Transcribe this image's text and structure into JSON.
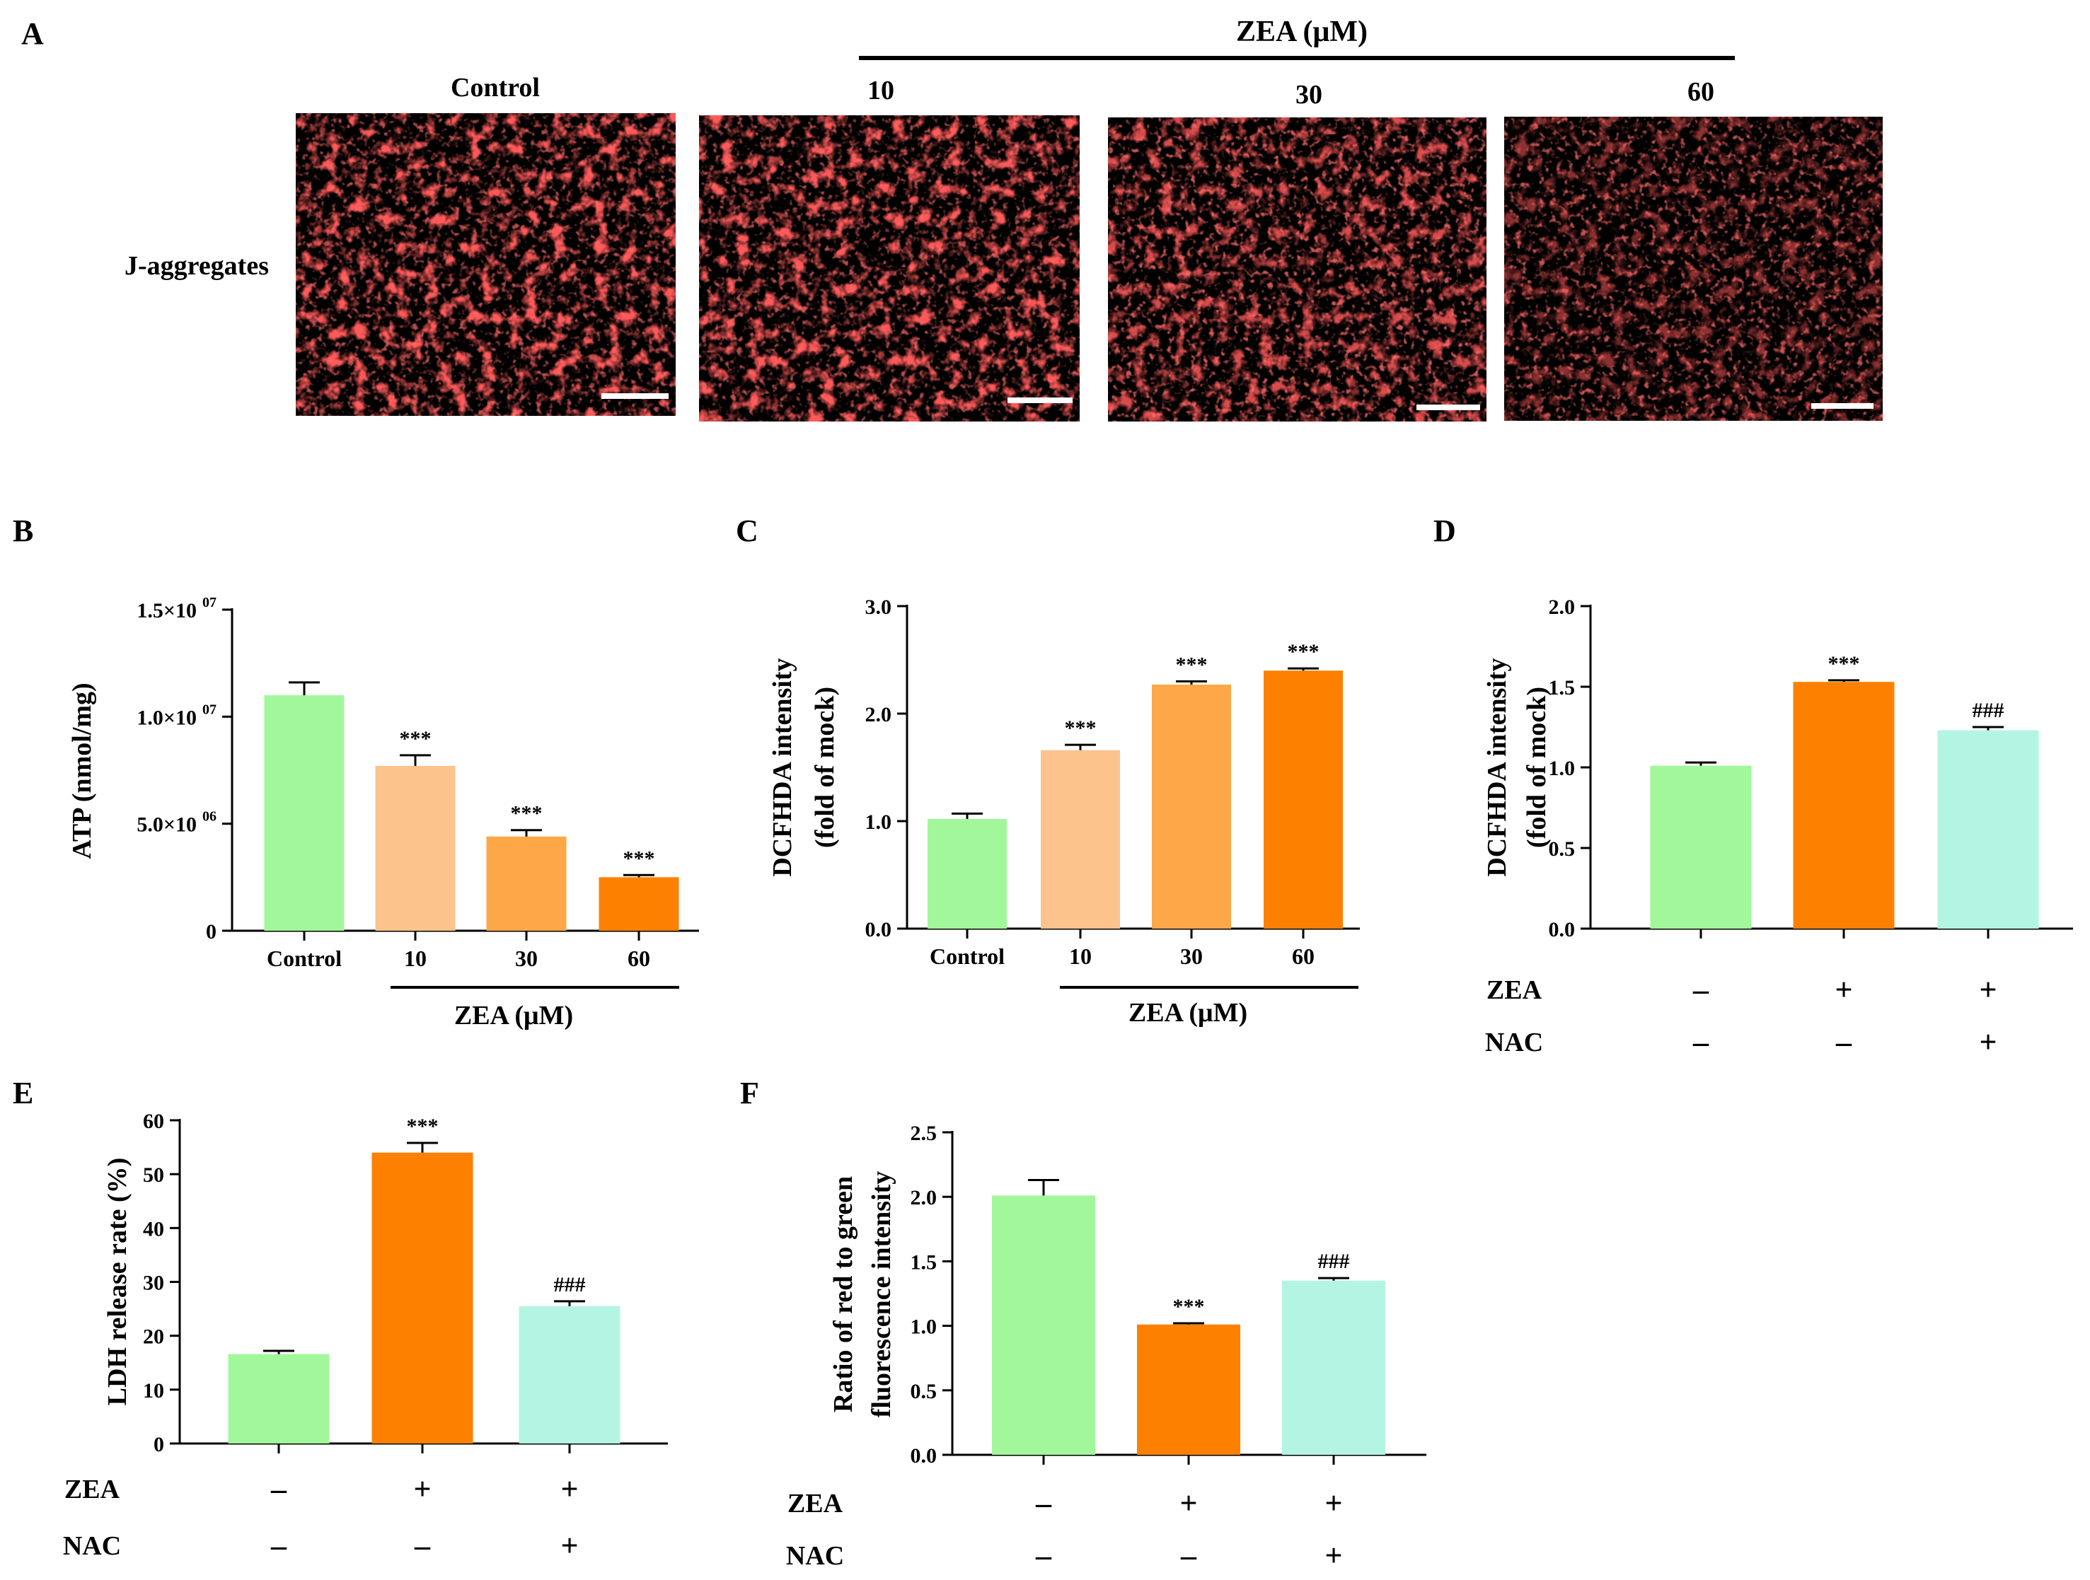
{
  "panel_labels": {
    "A": "A",
    "B": "B",
    "C": "C",
    "D": "D",
    "E": "E",
    "F": "F"
  },
  "panel_a": {
    "group_title": "ZEA (μM)",
    "row_label": "J-aggregates",
    "images": [
      {
        "label": "Control"
      },
      {
        "label": "10"
      },
      {
        "label": "30"
      },
      {
        "label": "60"
      }
    ],
    "image_color": "#ff1a1a"
  },
  "colors": {
    "green": "#a2f79b",
    "light_orange": "#fcc38c",
    "mid_orange": "#fda748",
    "orange": "#fe8001",
    "aqua": "#b3f5e2"
  },
  "chart_data": [
    {
      "panel": "B",
      "type": "bar",
      "ylabel": "ATP (nmol/mg)",
      "ylim": [
        0,
        15000000
      ],
      "yticks": [
        0,
        5000000,
        10000000,
        15000000
      ],
      "yticklabels": [
        "0",
        "5.0×10",
        "1.0×10",
        "1.5×10"
      ],
      "yticksup": [
        "",
        "06",
        "07",
        "07"
      ],
      "categories": [
        "Control",
        "10",
        "30",
        "60"
      ],
      "values": [
        11000000,
        7700000,
        4400000,
        2500000
      ],
      "errors": [
        600000,
        500000,
        300000,
        100000
      ],
      "significance": [
        "",
        "***",
        "***",
        "***"
      ],
      "colors": [
        "#a2f79b",
        "#fcc38c",
        "#fda748",
        "#fe8001"
      ],
      "group_label": "ZEA (μM)"
    },
    {
      "panel": "C",
      "type": "bar",
      "ylabel": "DCFHDA intensity",
      "ylabel2": "(fold of mock)",
      "ylim": [
        0,
        3.0
      ],
      "yticks": [
        0,
        1,
        2,
        3
      ],
      "yticklabels": [
        "0.0",
        "1.0",
        "2.0",
        "3.0"
      ],
      "categories": [
        "Control",
        "10",
        "30",
        "60"
      ],
      "values": [
        1.02,
        1.66,
        2.27,
        2.4
      ],
      "errors": [
        0.05,
        0.05,
        0.03,
        0.02
      ],
      "significance": [
        "",
        "***",
        "***",
        "***"
      ],
      "colors": [
        "#a2f79b",
        "#fcc38c",
        "#fda748",
        "#fe8001"
      ],
      "group_label": "ZEA (μM)"
    },
    {
      "panel": "D",
      "type": "bar",
      "ylabel": "DCFHDA intensity",
      "ylabel2": "(fold of mock)",
      "ylim": [
        0,
        2.0
      ],
      "yticks": [
        0,
        0.5,
        1,
        1.5,
        2
      ],
      "yticklabels": [
        "0.0",
        "0.5",
        "1.0",
        "1.5",
        "2.0"
      ],
      "values": [
        1.01,
        1.53,
        1.23
      ],
      "errors": [
        0.02,
        0.01,
        0.02
      ],
      "significance": [
        "",
        "***",
        "###"
      ],
      "colors": [
        "#a2f79b",
        "#fe8001",
        "#b3f5e2"
      ],
      "treatments": [
        {
          "name": "ZEA",
          "marks": [
            "–",
            "+",
            "+"
          ]
        },
        {
          "name": "NAC",
          "marks": [
            "–",
            "–",
            "+"
          ]
        }
      ]
    },
    {
      "panel": "E",
      "type": "bar",
      "ylabel": "LDH release rate (%)",
      "ylim": [
        0,
        60
      ],
      "yticks": [
        0,
        10,
        20,
        30,
        40,
        50,
        60
      ],
      "yticklabels": [
        "0",
        "10",
        "20",
        "30",
        "40",
        "50",
        "60"
      ],
      "values": [
        16.6,
        54.0,
        25.5
      ],
      "errors": [
        0.6,
        1.8,
        0.9
      ],
      "significance": [
        "",
        "***",
        "###"
      ],
      "colors": [
        "#a2f79b",
        "#fe8001",
        "#b3f5e2"
      ],
      "treatments": [
        {
          "name": "ZEA",
          "marks": [
            "–",
            "+",
            "+"
          ]
        },
        {
          "name": "NAC",
          "marks": [
            "–",
            "–",
            "+"
          ]
        }
      ]
    },
    {
      "panel": "F",
      "type": "bar",
      "ylabel": "Ratio of red to green",
      "ylabel2": "fluorescence intensity",
      "ylim": [
        0,
        2.5
      ],
      "yticks": [
        0,
        0.5,
        1,
        1.5,
        2,
        2.5
      ],
      "yticklabels": [
        "0.0",
        "0.5",
        "1.0",
        "1.5",
        "2.0",
        "2.5"
      ],
      "values": [
        2.01,
        1.01,
        1.35
      ],
      "errors": [
        0.12,
        0.01,
        0.02
      ],
      "significance": [
        "",
        "***",
        "###"
      ],
      "colors": [
        "#a2f79b",
        "#fe8001",
        "#b3f5e2"
      ],
      "treatments": [
        {
          "name": "ZEA",
          "marks": [
            "–",
            "+",
            "+"
          ]
        },
        {
          "name": "NAC",
          "marks": [
            "–",
            "–",
            "+"
          ]
        }
      ]
    }
  ]
}
